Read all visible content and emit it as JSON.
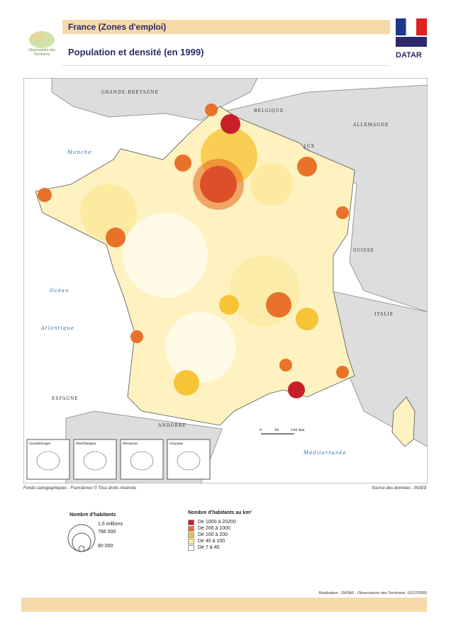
{
  "header": {
    "logo_text": "Observatoire des Territoires",
    "section": "France (Zones d'emploi)",
    "title": "Population et densité (en 1999)",
    "agency": "DATAR"
  },
  "map": {
    "labels": [
      "GRANDE-BRETAGNE",
      "BELGIQUE",
      "ALLEMAGNE",
      "LUX",
      "Manche",
      "SUISSE",
      "Océan",
      "Atlantique",
      "ITALIE",
      "ESPAGNE",
      "ANDORRE",
      "Méditerranée"
    ],
    "insets": [
      "Guadeloupe",
      "Martinique",
      "Réunion",
      "Guyane"
    ],
    "scale": [
      "0",
      "50",
      "100 Km"
    ]
  },
  "credits": {
    "base": "Fonds cartographiques : Francièmes © Tous droits réservés",
    "source": "Source des données : INSEE"
  },
  "legend_size": {
    "title": "Nombre d'habitants",
    "items": [
      "1,6 millions",
      "786 000",
      "80 000"
    ]
  },
  "legend_density": {
    "title": "Nombre d'habitants au km²",
    "items": [
      {
        "label": "De 1000 à 20200",
        "color": "#c8202a"
      },
      {
        "label": "De 200 à 1000",
        "color": "#e8722a"
      },
      {
        "label": "De 100 à 200",
        "color": "#f7c436"
      },
      {
        "label": "De 40 à 100",
        "color": "#fbeaa0"
      },
      {
        "label": "De 7 à 40",
        "color": "#fefbea"
      }
    ]
  },
  "footer": {
    "credit": "Réalisation : DATAR - Observatoire des Territoires, 01/12/2003"
  }
}
